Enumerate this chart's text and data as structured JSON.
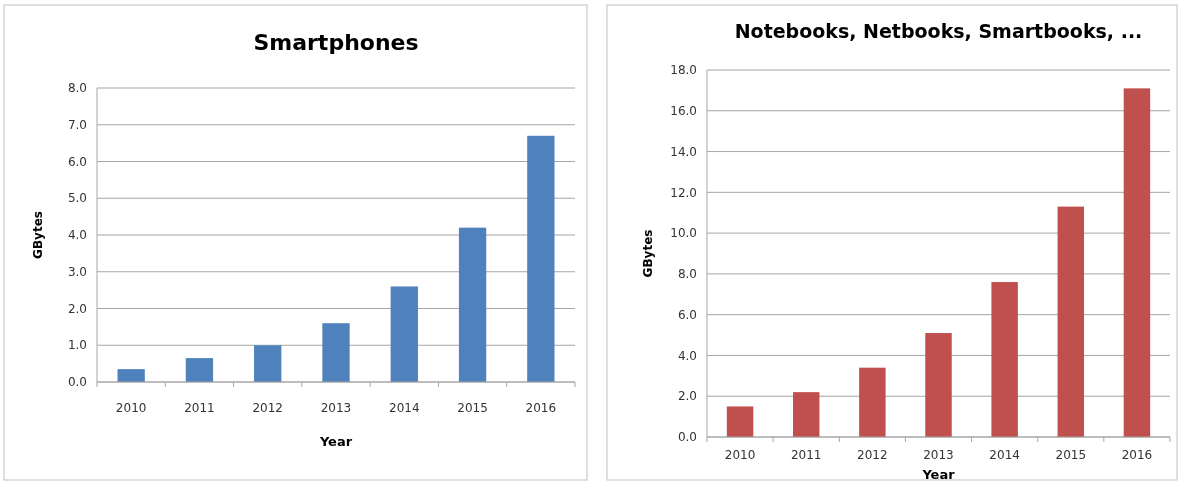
{
  "chart_data": [
    {
      "type": "bar",
      "title": "Smartphones",
      "xlabel": "Year",
      "ylabel": "GBytes",
      "categories": [
        "2010",
        "2011",
        "2012",
        "2013",
        "2014",
        "2015",
        "2016"
      ],
      "values": [
        0.35,
        0.65,
        1.0,
        1.6,
        2.6,
        4.2,
        6.7
      ],
      "color": "#4f81bd",
      "ylim": [
        0,
        8
      ],
      "yticks": [
        {
          "value": 0,
          "label": "0.0"
        },
        {
          "value": 1,
          "label": "1.0"
        },
        {
          "value": 2,
          "label": "2.0"
        },
        {
          "value": 3,
          "label": "3.0"
        },
        {
          "value": 4,
          "label": "4.0"
        },
        {
          "value": 5,
          "label": "5.0"
        },
        {
          "value": 6,
          "label": "6.0"
        },
        {
          "value": 7,
          "label": "7.0"
        },
        {
          "value": 8,
          "label": "8.0"
        }
      ],
      "grid": "y"
    },
    {
      "type": "bar",
      "title": "Notebooks, Netbooks, Smartbooks, ...",
      "xlabel": "Year",
      "ylabel": "GBytes",
      "categories": [
        "2010",
        "2011",
        "2012",
        "2013",
        "2014",
        "2015",
        "2016"
      ],
      "values": [
        1.5,
        2.2,
        3.4,
        5.1,
        7.6,
        11.3,
        17.1
      ],
      "color": "#c0504d",
      "ylim": [
        0,
        18
      ],
      "yticks": [
        {
          "value": 0,
          "label": "0.0"
        },
        {
          "value": 2,
          "label": "2.0"
        },
        {
          "value": 4,
          "label": "4.0"
        },
        {
          "value": 6,
          "label": "6.0"
        },
        {
          "value": 8,
          "label": "8.0"
        },
        {
          "value": 10,
          "label": "10.0"
        },
        {
          "value": 12,
          "label": "12.0"
        },
        {
          "value": 14,
          "label": "14.0"
        },
        {
          "value": 16,
          "label": "16.0"
        },
        {
          "value": 18,
          "label": "18.0"
        }
      ],
      "grid": "y"
    }
  ]
}
